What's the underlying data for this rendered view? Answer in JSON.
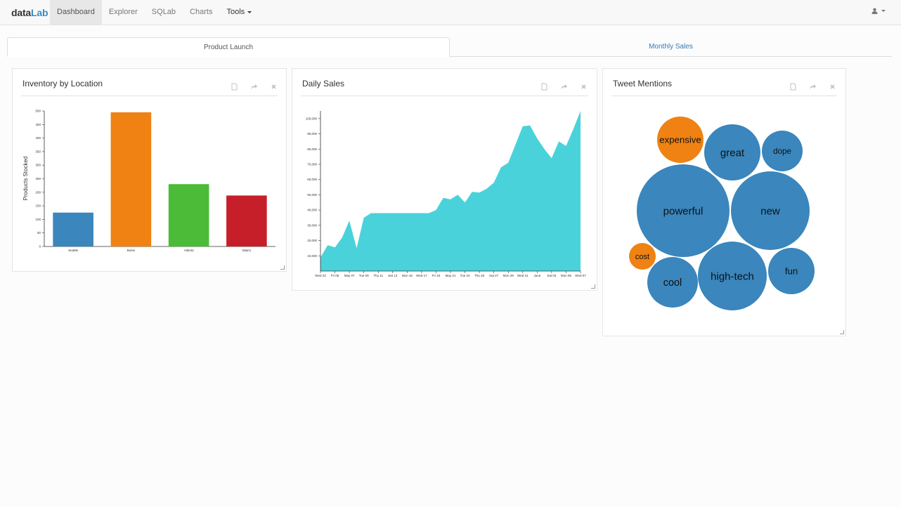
{
  "brand": {
    "part1": "data",
    "part2": "Lab"
  },
  "nav": {
    "dashboard": "Dashboard",
    "explorer": "Explorer",
    "sqlab": "SQLab",
    "charts": "Charts",
    "tools": "Tools"
  },
  "tabs": {
    "active": "Product Launch",
    "other": "Monthly Sales"
  },
  "panels": {
    "inventory": {
      "title": "Inventory by Location"
    },
    "sales": {
      "title": "Daily Sales"
    },
    "tweets": {
      "title": "Tweet Mentions"
    }
  },
  "colors": {
    "blue": "#3a86bd",
    "orange": "#ef8212",
    "green": "#4cbb37",
    "red": "#c61f2a",
    "teal": "#4ad2da"
  },
  "chart_data": [
    {
      "type": "bar",
      "ylabel": "Products Stocked",
      "xlabel": "",
      "categories": [
        "Seattle",
        "Boise",
        "Atlanta",
        "Miami"
      ],
      "values": [
        125,
        495,
        230,
        188
      ],
      "colors": [
        "#3a86bd",
        "#ef8212",
        "#4cbb37",
        "#c61f2a"
      ],
      "ylim": [
        0,
        500
      ],
      "yticks": [
        0,
        50,
        100,
        150,
        200,
        250,
        300,
        350,
        400,
        450,
        500
      ]
    },
    {
      "type": "area",
      "xlabel": "",
      "ylabel": "",
      "ylim": [
        0,
        105000
      ],
      "yticks": [
        "10,000",
        "20,000",
        "30,000",
        "40,000",
        "50,000",
        "60,000",
        "70,000",
        "80,000",
        "90,000",
        "100,000"
      ],
      "ytick_values": [
        10000,
        20000,
        30000,
        40000,
        50000,
        60000,
        70000,
        80000,
        90000,
        100000
      ],
      "xticks": [
        "Wed 23",
        "Fri 05",
        "May 07",
        "Tue 09",
        "Thu 11",
        "Sat 13",
        "Mon 15",
        "Wed 17",
        "Fri 19",
        "May 21",
        "Tue 23",
        "Thu 25",
        "Sat 27",
        "Mon 29",
        "Wed 31",
        "June",
        "Sat 03",
        "Mon 05",
        "Wed 07"
      ],
      "values": [
        9000,
        17000,
        15500,
        22000,
        33000,
        15000,
        35000,
        38000,
        38000,
        38000,
        38000,
        38000,
        38000,
        38000,
        38000,
        38000,
        40000,
        48000,
        47000,
        50000,
        45000,
        52000,
        51500,
        54000,
        58000,
        68000,
        71000,
        83000,
        95000,
        95500,
        87000,
        80000,
        74000,
        85000,
        82000,
        93000,
        105000
      ],
      "color": "#4ad2da"
    },
    {
      "type": "bubble",
      "items": [
        {
          "label": "expensive",
          "value": 33,
          "color": "#ef8212"
        },
        {
          "label": "great",
          "value": 40,
          "color": "#3a86bd"
        },
        {
          "label": "dope",
          "value": 29,
          "color": "#3a86bd"
        },
        {
          "label": "powerful",
          "value": 66,
          "color": "#3a86bd"
        },
        {
          "label": "new",
          "value": 56,
          "color": "#3a86bd"
        },
        {
          "label": "cost",
          "value": 19,
          "color": "#ef8212"
        },
        {
          "label": "cool",
          "value": 36,
          "color": "#3a86bd"
        },
        {
          "label": "high-tech",
          "value": 49,
          "color": "#3a86bd"
        },
        {
          "label": "fun",
          "value": 33,
          "color": "#3a86bd"
        }
      ]
    }
  ]
}
